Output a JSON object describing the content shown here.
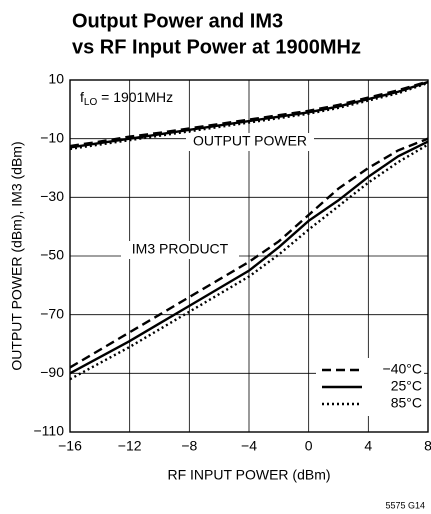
{
  "chart_data": {
    "type": "line",
    "title": [
      "Output Power and IM3",
      "vs RF Input Power at 1900MHz"
    ],
    "x_label": "RF INPUT POWER (dBm)",
    "y_label": "OUTPUT POWER (dBm), IM3 (dBm)",
    "annotations": {
      "flo": {
        "prefix": "f",
        "sub": "LO",
        "rest": " = 1901MHz"
      },
      "output": "OUTPUT POWER",
      "im3": "IM3 PRODUCT"
    },
    "footnote": "5575 G14",
    "x": [
      -16,
      -14,
      -12,
      -10,
      -8,
      -6,
      -4,
      -2,
      0,
      2,
      4,
      6,
      8
    ],
    "series": [
      {
        "name": "−40°C",
        "color": "#000000",
        "dash": "9,5",
        "output": [
          -12.5,
          -11,
          -9.3,
          -8,
          -6.5,
          -5,
          -3.5,
          -2,
          -0.5,
          1.5,
          4,
          6.5,
          9.5
        ],
        "im3": [
          -88,
          -82,
          -76,
          -70,
          -64,
          -58,
          -52,
          -45,
          -36,
          -27,
          -20,
          -14,
          -10
        ]
      },
      {
        "name": "25°C",
        "color": "#000000",
        "dash": "none",
        "output": [
          -13,
          -11.5,
          -10,
          -8.5,
          -7,
          -5.5,
          -4,
          -2.5,
          -1,
          1,
          3.5,
          6,
          9.3
        ],
        "im3": [
          -90,
          -84.5,
          -79,
          -73,
          -67,
          -61,
          -55,
          -47,
          -38,
          -31,
          -23,
          -16,
          -11
        ]
      },
      {
        "name": "85°C",
        "color": "#000000",
        "dash": "2,3",
        "output": [
          -13.5,
          -12,
          -10.5,
          -9,
          -7.5,
          -6,
          -4.5,
          -3,
          -1.5,
          0.5,
          3,
          5.5,
          9
        ],
        "im3": [
          -92,
          -86.5,
          -81,
          -75,
          -69,
          -63,
          -57,
          -49.5,
          -41,
          -33,
          -25,
          -18,
          -12
        ]
      }
    ],
    "xlim": [
      -16,
      8
    ],
    "xticks": [
      {
        "value": -16,
        "label": "−16"
      },
      {
        "value": -12,
        "label": "−12"
      },
      {
        "value": -8,
        "label": "−8"
      },
      {
        "value": -4,
        "label": "−4"
      },
      0,
      4,
      8
    ],
    "ylim": [
      -110,
      10
    ],
    "yticks": [
      10,
      {
        "value": -10,
        "label": "−10"
      },
      {
        "value": -30,
        "label": "−30"
      },
      {
        "value": -50,
        "label": "−50"
      },
      {
        "value": -70,
        "label": "−70"
      },
      {
        "value": -90,
        "label": "−90"
      },
      {
        "value": -110,
        "label": "−110"
      }
    ],
    "grid": true,
    "legend": "lower right"
  }
}
